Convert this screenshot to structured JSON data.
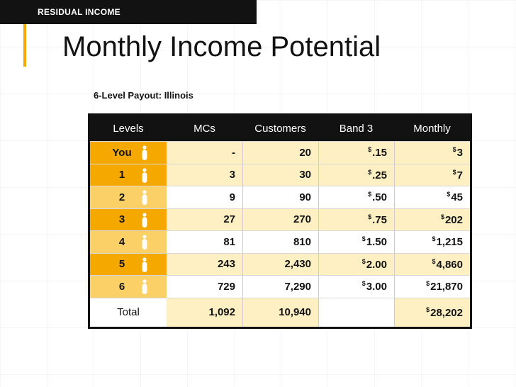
{
  "header": {
    "section_tag": "RESIDUAL INCOME",
    "title": "Monthly Income Potential",
    "subtitle": "6-Level Payout: Illinois"
  },
  "colors": {
    "dark": "#121212",
    "gold": "#f5a800",
    "light_gold": "#fff0c4"
  },
  "table": {
    "columns": [
      "Levels",
      "MCs",
      "Customers",
      "Band 3",
      "Monthly"
    ],
    "rows": [
      {
        "level": "You",
        "mcs": "-",
        "customers": "20",
        "band3": ".15",
        "monthly": "3",
        "shade": "gold"
      },
      {
        "level": "1",
        "mcs": "3",
        "customers": "30",
        "band3": ".25",
        "monthly": "7",
        "shade": "gold"
      },
      {
        "level": "2",
        "mcs": "9",
        "customers": "90",
        "band3": ".50",
        "monthly": "45",
        "shade": "white"
      },
      {
        "level": "3",
        "mcs": "27",
        "customers": "270",
        "band3": ".75",
        "monthly": "202",
        "shade": "gold"
      },
      {
        "level": "4",
        "mcs": "81",
        "customers": "810",
        "band3": "1.50",
        "monthly": "1,215",
        "shade": "white"
      },
      {
        "level": "5",
        "mcs": "243",
        "customers": "2,430",
        "band3": "2.00",
        "monthly": "4,860",
        "shade": "gold"
      },
      {
        "level": "6",
        "mcs": "729",
        "customers": "7,290",
        "band3": "3.00",
        "monthly": "21,870",
        "shade": "white"
      }
    ],
    "total": {
      "label": "Total",
      "mcs": "1,092",
      "customers": "10,940",
      "band3": "",
      "monthly": "28,202"
    },
    "currency_symbol": "$",
    "person_icon": "person-icon"
  }
}
